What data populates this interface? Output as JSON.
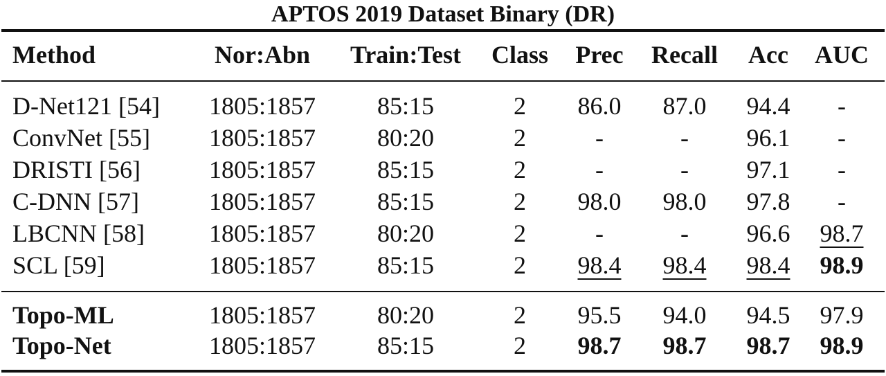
{
  "caption": "APTOS 2019 Dataset Binary (DR)",
  "columns": [
    "Method",
    "Nor:Abn",
    "Train:Test",
    "Class",
    "Prec",
    "Recall",
    "Acc",
    "AUC"
  ],
  "rows": [
    {
      "method": "D-Net121 [54]",
      "ratio": "1805:1857",
      "split": "85:15",
      "class": "2",
      "prec": "86.0",
      "recall": "87.0",
      "acc": "94.4",
      "auc": "-"
    },
    {
      "method": "ConvNet [55]",
      "ratio": "1805:1857",
      "split": "80:20",
      "class": "2",
      "prec": "-",
      "recall": "-",
      "acc": "96.1",
      "auc": "-"
    },
    {
      "method": "DRISTI [56]",
      "ratio": "1805:1857",
      "split": "85:15",
      "class": "2",
      "prec": "-",
      "recall": "-",
      "acc": "97.1",
      "auc": "-"
    },
    {
      "method": "C-DNN [57]",
      "ratio": "1805:1857",
      "split": "85:15",
      "class": "2",
      "prec": "98.0",
      "recall": "98.0",
      "acc": "97.8",
      "auc": "-"
    },
    {
      "method": "LBCNN [58]",
      "ratio": "1805:1857",
      "split": "80:20",
      "class": "2",
      "prec": "-",
      "recall": "-",
      "acc": "96.6",
      "auc": "98.7"
    },
    {
      "method": "SCL [59]",
      "ratio": "1805:1857",
      "split": "85:15",
      "class": "2",
      "prec": "98.4",
      "recall": "98.4",
      "acc": "98.4",
      "auc": "98.9"
    },
    {
      "method": "Topo-ML",
      "ratio": "1805:1857",
      "split": "80:20",
      "class": "2",
      "prec": "95.5",
      "recall": "94.0",
      "acc": "94.5",
      "auc": "97.9"
    },
    {
      "method": "Topo-Net",
      "ratio": "1805:1857",
      "split": "85:15",
      "class": "2",
      "prec": "98.7",
      "recall": "98.7",
      "acc": "98.7",
      "auc": "98.9"
    }
  ]
}
